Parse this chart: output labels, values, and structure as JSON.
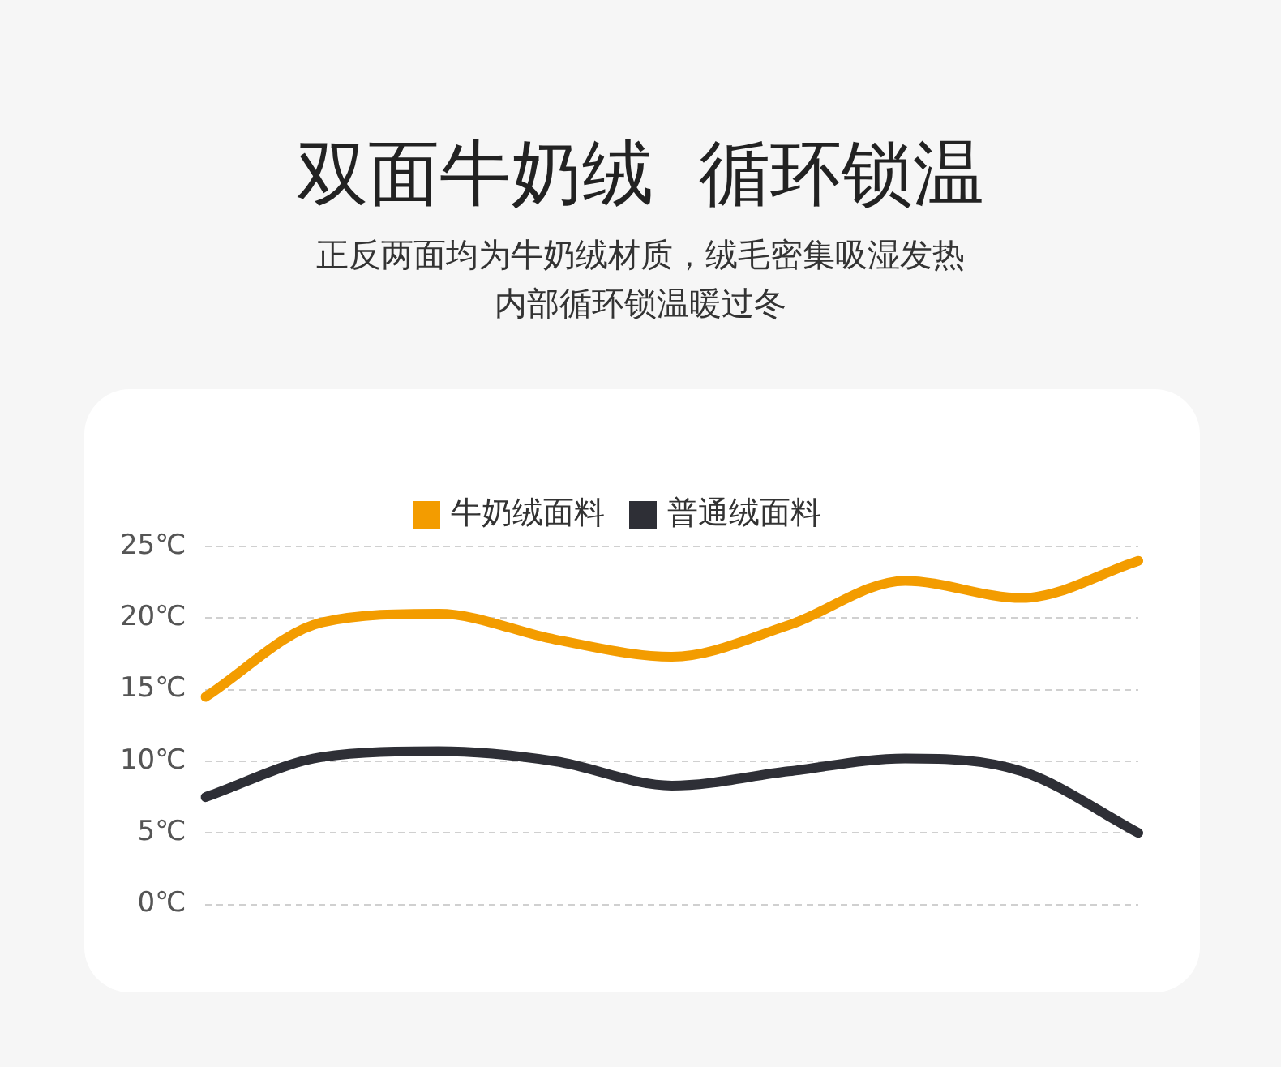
{
  "chart_data": {
    "type": "line",
    "title": "双面牛奶绒  循环锁温",
    "subtitle": "正反两面均为牛奶绒材质，绒毛密集吸湿发热内部循环锁温暖过冬",
    "categories": [
      null,
      null,
      null,
      null,
      null,
      null,
      null,
      null,
      null
    ],
    "series": [
      {
        "name": "牛奶绒面料",
        "color": "#f39c00",
        "values": [
          14.5,
          19.7,
          20.3,
          18.5,
          17.3,
          19.5,
          22.6,
          21.4,
          24
        ]
      },
      {
        "name": "普通绒面料",
        "color": "#2e2f36",
        "values": [
          7.5,
          10.3,
          10.7,
          10,
          8.3,
          9.3,
          10.2,
          9.3,
          5
        ]
      }
    ],
    "ylim": [
      0,
      25
    ],
    "yticks": [
      {
        "value": 0,
        "label": "0℃"
      },
      {
        "value": 5,
        "label": "5℃"
      },
      {
        "value": 10,
        "label": "10℃"
      },
      {
        "value": 15,
        "label": "15℃"
      },
      {
        "value": 20,
        "label": "20℃"
      },
      {
        "value": 25,
        "label": "25℃"
      }
    ],
    "grid": "y",
    "legend": "top",
    "marker": "none",
    "line_style": "solid",
    "tick_labels": "y"
  }
}
